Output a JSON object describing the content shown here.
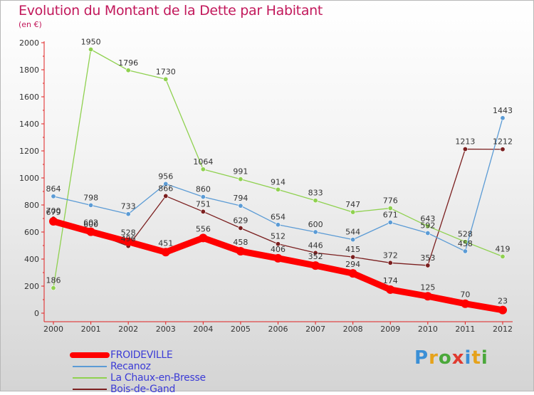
{
  "title": "Evolution du Montant de la Dette par Habitant",
  "subtitle": "(en €)",
  "logo": "Proxiti",
  "chart_data": {
    "type": "line",
    "title": "Evolution du Montant de la Dette par Habitant",
    "ylabel": "(en €)",
    "xlabel": "",
    "x": [
      2000,
      2001,
      2002,
      2003,
      2004,
      2005,
      2006,
      2007,
      2008,
      2009,
      2010,
      2011,
      2012
    ],
    "ylim": [
      0,
      2000
    ],
    "yticks": [
      0,
      200,
      400,
      600,
      800,
      1000,
      1200,
      1400,
      1600,
      1800,
      2000
    ],
    "grid": false,
    "legend": "bottom-left",
    "series": [
      {
        "name": "FROIDEVILLE",
        "color": "#ff0000",
        "values": [
          679,
          602,
          528,
          451,
          556,
          458,
          406,
          352,
          294,
          174,
          125,
          70,
          23
        ]
      },
      {
        "name": "Recanoz",
        "color": "#5b9bd5",
        "values": [
          864,
          798,
          733,
          956,
          860,
          794,
          654,
          600,
          544,
          671,
          592,
          458,
          1443
        ]
      },
      {
        "name": "La Chaux-en-Bresse",
        "color": "#8fd14f",
        "values": [
          186,
          1950,
          1796,
          1730,
          1064,
          991,
          914,
          833,
          747,
          776,
          643,
          528,
          419
        ]
      },
      {
        "name": "Bois-de-Gand",
        "color": "#7b1f1f",
        "values": [
          700,
          600,
          496,
          866,
          751,
          629,
          512,
          446,
          415,
          372,
          353,
          1213,
          1212
        ]
      }
    ]
  }
}
